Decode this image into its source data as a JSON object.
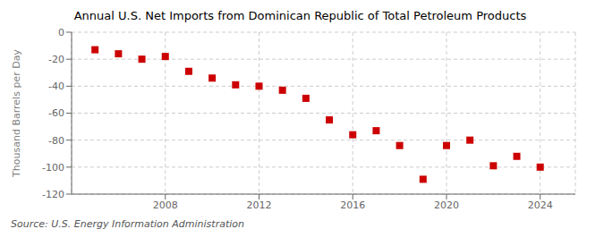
{
  "chart_data": {
    "type": "scatter",
    "title": "Annual U.S. Net Imports from Dominican Republic of Total Petroleum Products",
    "y_label": "Thousand Barrels per Day",
    "annotations": [
      "Source: U.S. Energy Information Administration"
    ],
    "x": [
      2005,
      2006,
      2007,
      2008,
      2009,
      2010,
      2011,
      2012,
      2013,
      2014,
      2015,
      2016,
      2017,
      2018,
      2019,
      2020,
      2021,
      2022,
      2023,
      2024
    ],
    "values": [
      -13,
      -16,
      -20,
      -18,
      -29,
      -34,
      -39,
      -40,
      -43,
      -49,
      -65,
      -76,
      -73,
      -84,
      -109,
      -84,
      -80,
      -99,
      -92,
      -100
    ],
    "color": "#cc0000",
    "marker": "square",
    "xlim": [
      2004.0,
      2025.5
    ],
    "xticks": [
      2008,
      2012,
      2016,
      2020,
      2024
    ],
    "ylim": [
      -120,
      0
    ],
    "yticks": [
      0,
      -20,
      -40,
      -60,
      -80,
      -100,
      -120
    ],
    "grid": true
  }
}
